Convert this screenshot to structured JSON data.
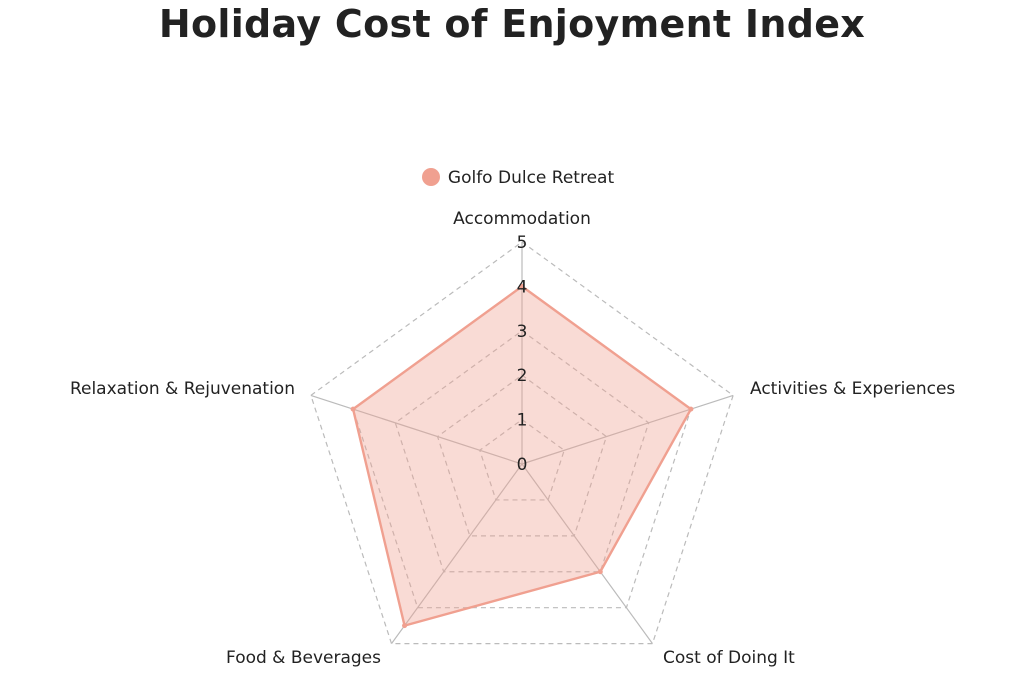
{
  "chart_data": {
    "type": "radar",
    "title": "Holiday Cost of Enjoyment Index",
    "axes": [
      "Accommodation",
      "Activities & Experiences",
      "Cost of Doing It",
      "Food & Beverages",
      "Relaxation & Rejuvenation"
    ],
    "range": [
      0,
      5
    ],
    "ticks": [
      "0",
      "1",
      "2",
      "3",
      "4",
      "5"
    ],
    "series": [
      {
        "name": "Golfo Dulce Retreat",
        "values": [
          4,
          4,
          3,
          4.5,
          4
        ],
        "color": "#f0a090"
      }
    ],
    "legend_position": "top",
    "grid": "dashed"
  }
}
